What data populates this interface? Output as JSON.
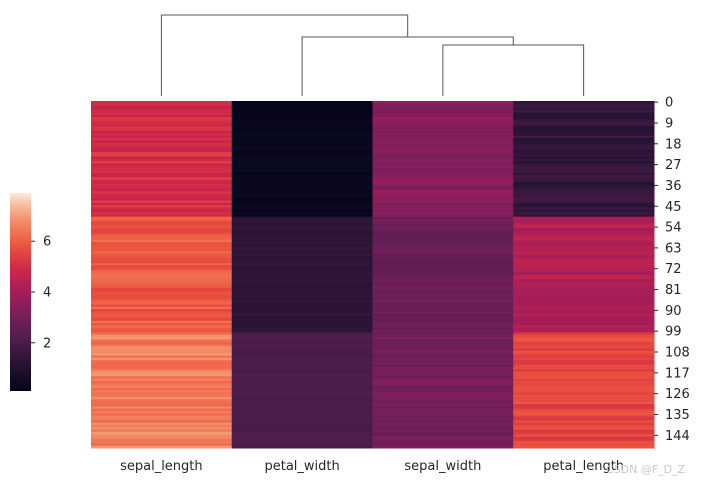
{
  "chart_data": {
    "type": "heatmap",
    "columns": [
      "sepal_length",
      "petal_width",
      "sepal_width",
      "petal_length"
    ],
    "row_tick_labels": [
      "0",
      "9",
      "18",
      "27",
      "36",
      "45",
      "54",
      "63",
      "72",
      "81",
      "90",
      "99",
      "108",
      "117",
      "126",
      "135",
      "144"
    ],
    "row_count": 150,
    "colorbar": {
      "ticks": [
        "2",
        "4",
        "6"
      ],
      "vmin": 0.1,
      "vmax": 7.9,
      "colormap": "rocket"
    },
    "column_dendrogram": true,
    "groups": [
      {
        "rows": [
          0,
          49
        ],
        "sepal_length": 5.0,
        "petal_width": 0.25,
        "sepal_width": 3.4,
        "petal_length": 1.46
      },
      {
        "rows": [
          50,
          99
        ],
        "sepal_length": 5.9,
        "petal_width": 1.33,
        "sepal_width": 2.8,
        "petal_length": 4.26
      },
      {
        "rows": [
          100,
          149
        ],
        "sepal_length": 6.6,
        "petal_width": 2.03,
        "sepal_width": 3.0,
        "petal_length": 5.55
      }
    ]
  },
  "watermark": "CSDN @F_D_Z"
}
